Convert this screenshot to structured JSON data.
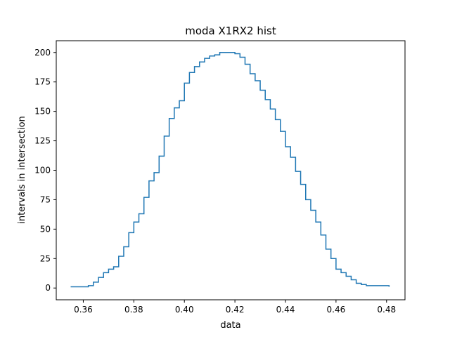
{
  "chart_data": {
    "type": "line",
    "title": "moda X1RX2 hist",
    "xlabel": "data",
    "ylabel": "intervals in intersection",
    "xlim": [
      0.3493,
      0.4873
    ],
    "ylim": [
      -10,
      210
    ],
    "x_ticks": [
      {
        "value": 0.36,
        "label": "0.36"
      },
      {
        "value": 0.38,
        "label": "0.38"
      },
      {
        "value": 0.4,
        "label": "0.40"
      },
      {
        "value": 0.42,
        "label": "0.42"
      },
      {
        "value": 0.44,
        "label": "0.44"
      },
      {
        "value": 0.46,
        "label": "0.46"
      },
      {
        "value": 0.48,
        "label": "0.48"
      }
    ],
    "y_ticks": [
      {
        "value": 0,
        "label": "0"
      },
      {
        "value": 25,
        "label": "25"
      },
      {
        "value": 50,
        "label": "50"
      },
      {
        "value": 75,
        "label": "75"
      },
      {
        "value": 100,
        "label": "100"
      },
      {
        "value": 125,
        "label": "125"
      },
      {
        "value": 150,
        "label": "150"
      },
      {
        "value": 175,
        "label": "175"
      },
      {
        "value": 200,
        "label": "200"
      }
    ],
    "grid": false,
    "series": [
      {
        "color": "#1f77b4",
        "step": true,
        "x": [
          0.355,
          0.36,
          0.362,
          0.364,
          0.366,
          0.368,
          0.37,
          0.372,
          0.374,
          0.376,
          0.378,
          0.38,
          0.382,
          0.384,
          0.386,
          0.388,
          0.39,
          0.392,
          0.394,
          0.396,
          0.398,
          0.4,
          0.402,
          0.404,
          0.406,
          0.408,
          0.41,
          0.412,
          0.414,
          0.416,
          0.418,
          0.42,
          0.422,
          0.424,
          0.426,
          0.428,
          0.43,
          0.432,
          0.434,
          0.436,
          0.438,
          0.44,
          0.442,
          0.444,
          0.446,
          0.448,
          0.45,
          0.452,
          0.454,
          0.456,
          0.458,
          0.46,
          0.462,
          0.464,
          0.466,
          0.468,
          0.47,
          0.472,
          0.474,
          0.476,
          0.478,
          0.481
        ],
        "y": [
          1,
          1,
          2,
          5,
          9,
          13,
          16,
          18,
          27,
          35,
          47,
          56,
          63,
          77,
          91,
          98,
          112,
          129,
          144,
          153,
          159,
          174,
          183,
          188,
          192,
          195,
          197,
          198,
          200,
          200,
          200,
          199,
          196,
          190,
          182,
          176,
          168,
          160,
          152,
          143,
          133,
          120,
          111,
          99,
          88,
          75,
          66,
          56,
          45,
          33,
          25,
          16,
          13,
          10,
          7,
          4,
          3,
          2,
          2,
          2,
          2,
          1
        ]
      }
    ]
  }
}
